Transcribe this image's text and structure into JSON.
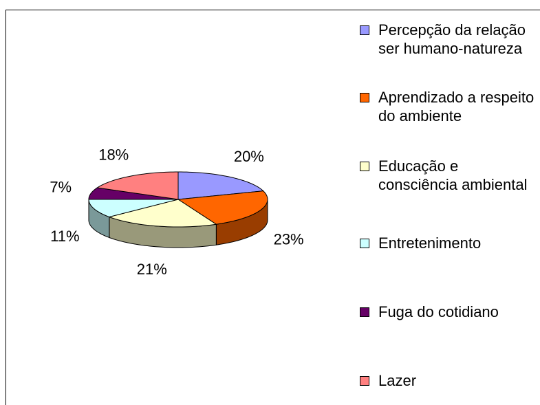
{
  "chart_data": {
    "type": "pie",
    "three_d": true,
    "categories": [
      "Percepção da relação ser humano-natureza",
      "Aprendizado a respeito do ambiente",
      "Educação e consciência ambiental",
      "Entretenimento",
      "Fuga do cotidiano",
      "Lazer"
    ],
    "values": [
      20,
      23,
      21,
      11,
      7,
      18
    ],
    "value_labels": [
      "20%",
      "23%",
      "21%",
      "11%",
      "7%",
      "18%"
    ],
    "colors": [
      "#9999ff",
      "#ff6600",
      "#ffffcc",
      "#ccffff",
      "#660066",
      "#ff8080"
    ],
    "legend": "right"
  }
}
